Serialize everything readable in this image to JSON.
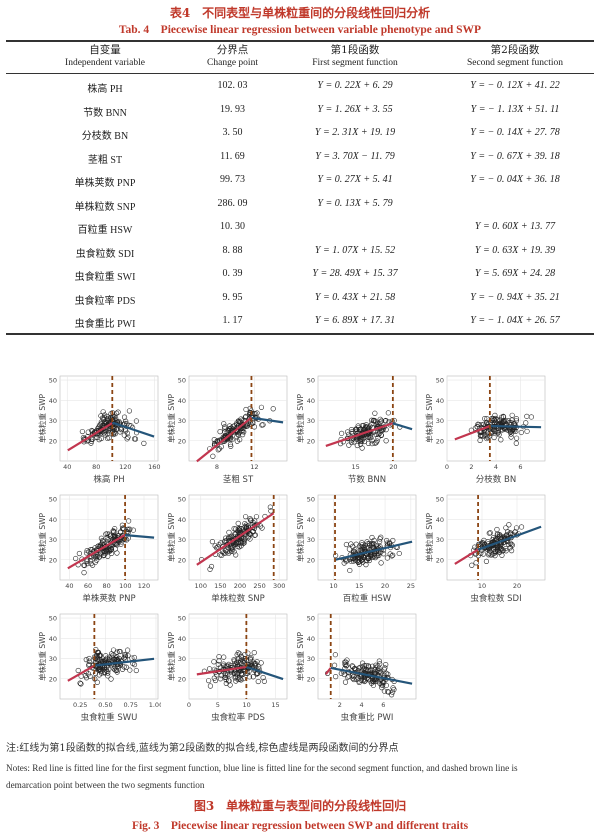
{
  "table": {
    "caption_cn": "表4　不同表型与单株粒重间的分段线性回归分析",
    "caption_en": "Tab. 4　Piecewise linear regression between variable phenotype and SWP",
    "headers": [
      {
        "cn": "自变量",
        "en": "Independent variable"
      },
      {
        "cn": "分界点",
        "en": "Change point"
      },
      {
        "cn": "第1段函数",
        "en": "First segment function"
      },
      {
        "cn": "第2段函数",
        "en": "Second segment function"
      }
    ],
    "rows": [
      {
        "var": "株高 PH",
        "cp": "102. 03",
        "f1": "Y = 0. 22X + 6. 29",
        "f2": "Y = − 0. 12X + 41. 22"
      },
      {
        "var": "节数 BNN",
        "cp": "19. 93",
        "f1": "Y = 1. 26X + 3. 55",
        "f2": "Y = − 1. 13X + 51. 11"
      },
      {
        "var": "分枝数 BN",
        "cp": "3. 50",
        "f1": "Y = 2. 31X + 19. 19",
        "f2": "Y = − 0. 14X + 27. 78"
      },
      {
        "var": "茎粗 ST",
        "cp": "11. 69",
        "f1": "Y = 3. 70X − 11. 79",
        "f2": "Y = − 0. 67X + 39. 18"
      },
      {
        "var": "单株荚数 PNP",
        "cp": "99. 73",
        "f1": "Y = 0. 27X + 5. 41",
        "f2": "Y = − 0. 04X + 36. 18"
      },
      {
        "var": "单株粒数 SNP",
        "cp": "286. 09",
        "f1": "Y = 0. 13X + 5. 79",
        "f2": ""
      },
      {
        "var": "百粒重 HSW",
        "cp": "10. 30",
        "f1": "",
        "f2": "Y = 0. 60X + 13. 77"
      },
      {
        "var": "虫食粒数 SDI",
        "cp": "8. 88",
        "f1": "Y = 1. 07X + 15. 52",
        "f2": "Y = 0. 63X + 19. 39"
      },
      {
        "var": "虫食粒重 SWI",
        "cp": "0. 39",
        "f1": "Y = 28. 49X + 15. 37",
        "f2": "Y = 5. 69X + 24. 28"
      },
      {
        "var": "虫食粒率 PDS",
        "cp": "9. 95",
        "f1": "Y = 0. 43X + 21. 58",
        "f2": "Y = − 0. 94X + 35. 21"
      },
      {
        "var": "虫食重比 PWI",
        "cp": "1. 17",
        "f1": "Y = 6. 89X + 17. 31",
        "f2": "Y = − 1. 04X + 26. 57"
      }
    ]
  },
  "figure": {
    "ylabel": "单株粒重 SWP",
    "colors": {
      "first": "#c2364f",
      "second": "#24557a",
      "changepoint": "#8b4513"
    },
    "note_cn": "注:红线为第1段函数的拟合线,蓝线为第2段函数的拟合线,棕色虚线是两段函数间的分界点",
    "note_en_1": "Notes: Red line is fitted line for the first segment function, blue line is fitted line for the second segment function, and dashed brown line is",
    "note_en_2": "demarcation point between the two segments function",
    "caption_cn": "图3　单株粒重与表型间的分段线性回归",
    "caption_en": "Fig. 3　Piecewise linear regression between SWP and different traits"
  },
  "chart_data": [
    {
      "type": "scatter",
      "xlabel": "株高 PH",
      "xlim": [
        30,
        165
      ],
      "xticks": [
        40,
        80,
        120,
        160
      ],
      "ylim": [
        10,
        52
      ],
      "yticks": [
        20,
        30,
        40,
        50
      ],
      "changepoint": 102.03,
      "seg1": [
        0.22,
        6.29
      ],
      "seg2": [
        -0.12,
        41.22
      ]
    },
    {
      "type": "scatter",
      "xlabel": "茎粗 ST",
      "xlim": [
        5,
        15.5
      ],
      "xticks": [
        8,
        12
      ],
      "ylim": [
        10,
        52
      ],
      "yticks": [
        20,
        30,
        40,
        50
      ],
      "changepoint": 11.69,
      "seg1": [
        3.7,
        -11.79
      ],
      "seg2": [
        -0.67,
        39.18
      ]
    },
    {
      "type": "scatter",
      "xlabel": "节数 BNN",
      "xlim": [
        10,
        23
      ],
      "xticks": [
        15,
        20
      ],
      "ylim": [
        10,
        52
      ],
      "yticks": [
        20,
        30,
        40,
        50
      ],
      "changepoint": 19.93,
      "seg1": [
        1.26,
        3.55
      ],
      "seg2": [
        -1.13,
        51.11
      ]
    },
    {
      "type": "scatter",
      "xlabel": "分枝数 BN",
      "xlim": [
        0,
        8
      ],
      "xticks": [
        0,
        2,
        4,
        6
      ],
      "ylim": [
        10,
        52
      ],
      "yticks": [
        20,
        30,
        40,
        50
      ],
      "changepoint": 3.5,
      "seg1": [
        2.31,
        19.19
      ],
      "seg2": [
        -0.14,
        27.78
      ]
    },
    {
      "type": "scatter",
      "xlabel": "单株荚数 PNP",
      "xlim": [
        30,
        135
      ],
      "xticks": [
        40,
        60,
        80,
        100,
        120
      ],
      "ylim": [
        10,
        52
      ],
      "yticks": [
        20,
        30,
        40,
        50
      ],
      "changepoint": 99.73,
      "seg1": [
        0.27,
        5.41
      ],
      "seg2": [
        -0.04,
        36.18
      ]
    },
    {
      "type": "scatter",
      "xlabel": "单株粒数 SNP",
      "xlim": [
        70,
        320
      ],
      "xticks": [
        100,
        150,
        200,
        250,
        300
      ],
      "ylim": [
        10,
        52
      ],
      "yticks": [
        20,
        30,
        40,
        50
      ],
      "changepoint": 286.09,
      "seg1": [
        0.13,
        5.79
      ],
      "seg2": null
    },
    {
      "type": "scatter",
      "xlabel": "百粒重 HSW",
      "xlim": [
        7,
        26
      ],
      "xticks": [
        10,
        15,
        20,
        25
      ],
      "ylim": [
        10,
        52
      ],
      "yticks": [
        20,
        30,
        40,
        50
      ],
      "changepoint": 10.3,
      "seg1": null,
      "seg2": [
        0.6,
        13.77
      ]
    },
    {
      "type": "scatter",
      "xlabel": "虫食粒数 SDI",
      "xlim": [
        0,
        28
      ],
      "xticks": [
        10,
        20
      ],
      "ylim": [
        10,
        52
      ],
      "yticks": [
        20,
        30,
        40,
        50
      ],
      "changepoint": 8.88,
      "seg1": [
        1.07,
        15.52
      ],
      "seg2": [
        0.63,
        19.39
      ]
    },
    {
      "type": "scatter",
      "xlabel": "虫食粒重 SWU",
      "xlim": [
        0.05,
        1.02
      ],
      "xticks": [
        0.25,
        0.5,
        0.75,
        1.0
      ],
      "xticklabels": [
        "0.25",
        "0.50",
        "0.75",
        "1.00"
      ],
      "ylim": [
        10,
        52
      ],
      "yticks": [
        20,
        30,
        40,
        50
      ],
      "changepoint": 0.39,
      "seg1": [
        28.49,
        15.37
      ],
      "seg2": [
        5.69,
        24.28
      ]
    },
    {
      "type": "scatter",
      "xlabel": "虫食粒率 PDS",
      "xlim": [
        0,
        17
      ],
      "xticks": [
        0,
        5,
        10,
        15
      ],
      "ylim": [
        10,
        52
      ],
      "yticks": [
        20,
        30,
        40,
        50
      ],
      "changepoint": 9.95,
      "seg1": [
        0.43,
        21.58
      ],
      "seg2": [
        -0.94,
        35.21
      ]
    },
    {
      "type": "scatter",
      "xlabel": "虫食重比 PWI",
      "xlim": [
        0,
        9
      ],
      "xticks": [
        2,
        4,
        6
      ],
      "ylim": [
        10,
        52
      ],
      "yticks": [
        20,
        30,
        40,
        50
      ],
      "changepoint": 1.17,
      "seg1": [
        6.89,
        17.31
      ],
      "seg2": [
        -1.04,
        26.57
      ]
    }
  ]
}
